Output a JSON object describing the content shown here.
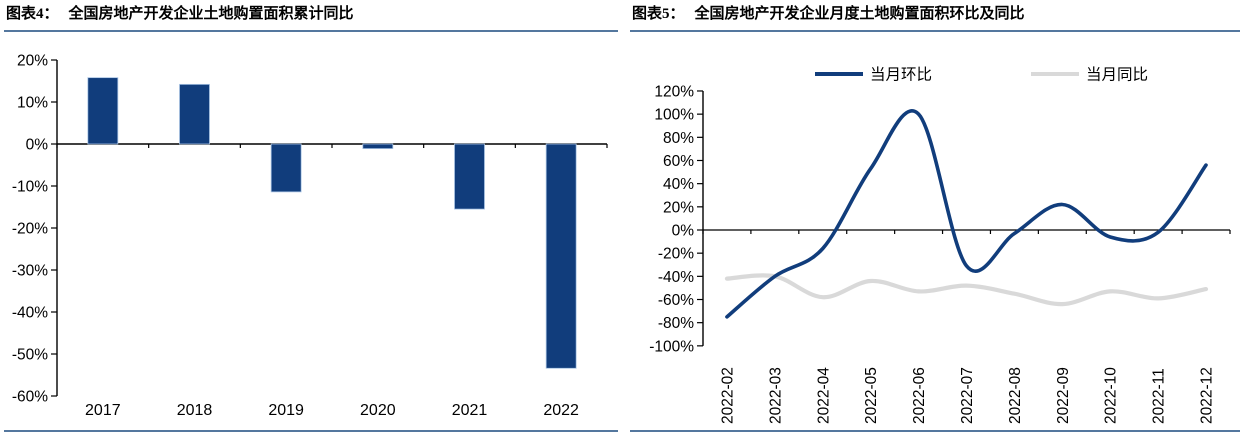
{
  "figures": {
    "fig4": {
      "label": "图表4：",
      "title": "全国房地产开发企业土地购置面积累计同比"
    },
    "fig5": {
      "label": "图表5：",
      "title": "全国房地产开发企业月度土地购置面积环比及同比"
    }
  },
  "colors": {
    "accent_rule": "#54779E",
    "navy": "#113D7C",
    "bar_edge": "#A9C4E4",
    "light_gray_series": "#D9D9D9",
    "axis_black": "#000000",
    "label_black": "#000000"
  },
  "chart_data": [
    {
      "type": "bar",
      "title": "全国房地产开发企业土地购置面积累计同比",
      "categories": [
        "2017",
        "2018",
        "2019",
        "2020",
        "2021",
        "2022"
      ],
      "values": [
        15.8,
        14.2,
        -11.4,
        -1.1,
        -15.5,
        -53.4
      ],
      "value_format": "percent",
      "xlabel": "",
      "ylabel": "",
      "ylim": [
        -60,
        20
      ],
      "ytick_step": 10,
      "ytick_labels": [
        "20%",
        "10%",
        "0%",
        "-10%",
        "-20%",
        "-30%",
        "-40%",
        "-50%",
        "-60%"
      ],
      "grid": false,
      "bar_color": "#113D7C"
    },
    {
      "type": "line",
      "title": "全国房地产开发企业月度土地购置面积环比及同比",
      "x": [
        "2022-02",
        "2022-03",
        "2022-04",
        "2022-05",
        "2022-06",
        "2022-07",
        "2022-08",
        "2022-09",
        "2022-10",
        "2022-11",
        "2022-12"
      ],
      "series": [
        {
          "name": "当月环比",
          "color": "#113D7C",
          "values": [
            -75,
            -40,
            -16,
            53,
            100,
            -31,
            -3,
            22,
            -6,
            -2,
            56
          ]
        },
        {
          "name": "当月同比",
          "color": "#D9D9D9",
          "values": [
            -42,
            -40,
            -58,
            -44,
            -53,
            -48,
            -55,
            -64,
            -53,
            -59,
            -51
          ]
        }
      ],
      "value_format": "percent",
      "ylim": [
        -100,
        120
      ],
      "ytick_step": 20,
      "ytick_labels": [
        "120%",
        "100%",
        "80%",
        "60%",
        "40%",
        "20%",
        "0%",
        "-20%",
        "-40%",
        "-60%",
        "-80%",
        "-100%"
      ],
      "xtick_rotation": 90,
      "legend_position": "top",
      "grid": false,
      "smooth": true
    }
  ]
}
